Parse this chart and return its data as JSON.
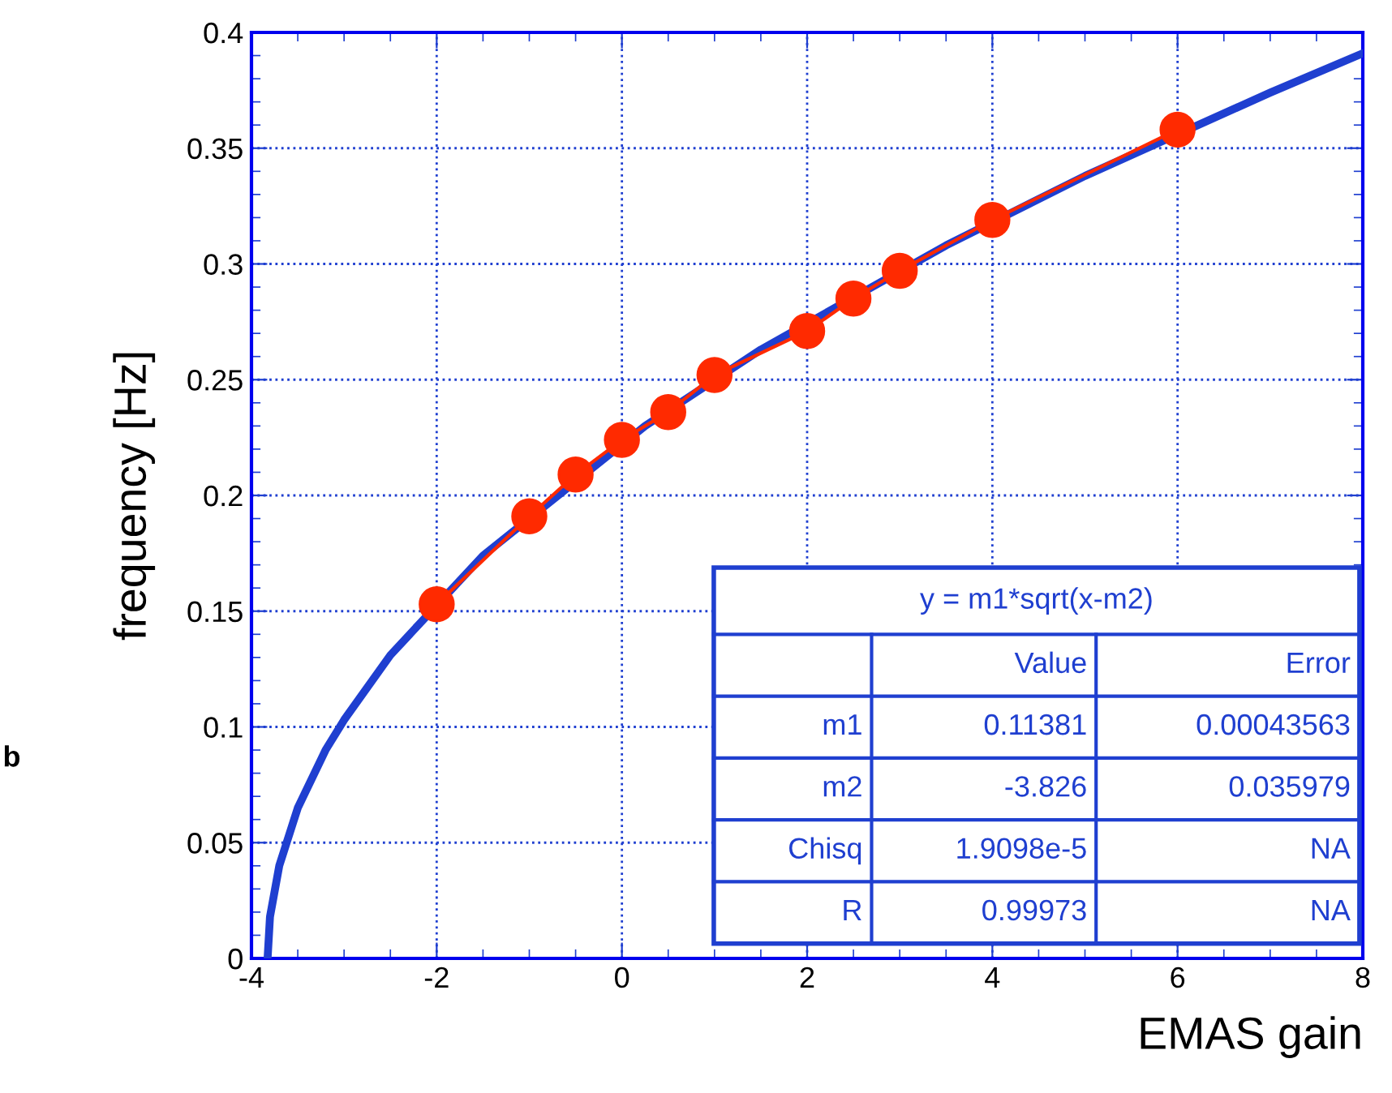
{
  "chart_data": {
    "type": "line",
    "xlabel": "EMAS gain",
    "ylabel": "frequency [Hz]",
    "xlim": [
      -4,
      8
    ],
    "ylim": [
      0,
      0.4
    ],
    "xticks": [
      -4,
      -2,
      0,
      2,
      4,
      6,
      8
    ],
    "yticks": [
      0,
      0.05,
      0.1,
      0.15,
      0.2,
      0.25,
      0.3,
      0.35,
      0.4
    ],
    "grid": true,
    "marker": "circle",
    "series": [
      {
        "color": "#1f3fd0",
        "marker": "none",
        "x": [
          -3.826,
          -3.8,
          -3.7,
          -3.5,
          -3.2,
          -3,
          -2.5,
          -1.5,
          0.25,
          1.5,
          3.5,
          5,
          7,
          8
        ],
        "values": [
          0,
          0.018,
          0.04,
          0.065,
          0.09,
          0.103,
          0.131,
          0.174,
          0.23,
          0.263,
          0.308,
          0.338,
          0.374,
          0.391
        ]
      },
      {
        "color": "#ff2a00",
        "x": [
          -2,
          -1,
          -0.5,
          0,
          0.5,
          1,
          2,
          2.5,
          3,
          4,
          6
        ],
        "values": [
          0.153,
          0.191,
          0.209,
          0.224,
          0.236,
          0.252,
          0.271,
          0.285,
          0.297,
          0.319,
          0.358
        ]
      }
    ],
    "annotations": [
      "y = m1*sqrt(x-m2)",
      "Value",
      "Error",
      "m1",
      "0.11381",
      "0.00043563",
      "m2",
      "-3.826",
      "0.035979",
      "Chisq",
      "1.9098e-5",
      "NA",
      "R",
      "0.99973",
      "NA",
      "b"
    ]
  }
}
